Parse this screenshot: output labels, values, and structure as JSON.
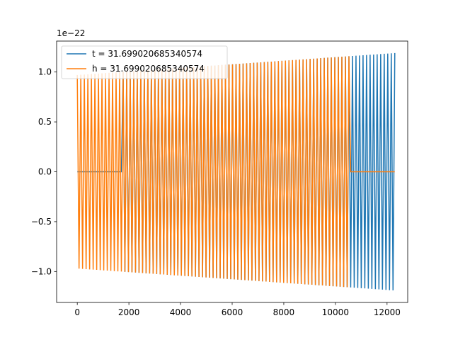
{
  "chart_data": {
    "type": "line",
    "title": "",
    "xlabel": "",
    "ylabel": "",
    "scale_label": "1e−22",
    "xlim": [
      -800,
      12800
    ],
    "ylim": [
      -1.31,
      1.31
    ],
    "x_ticks": [
      0,
      2000,
      4000,
      6000,
      8000,
      10000,
      12000
    ],
    "x_tick_labels": [
      "0",
      "2000",
      "4000",
      "6000",
      "8000",
      "10000",
      "12000"
    ],
    "y_ticks": [
      -1.0,
      -0.5,
      0.0,
      0.5,
      1.0
    ],
    "y_tick_labels": [
      "−1.0",
      "−0.5",
      "0.0",
      "0.5",
      "1.0"
    ],
    "legend_position": "top-left",
    "grid": false,
    "series": [
      {
        "name": "t = 31.699020685340574",
        "color": "#1f77b4",
        "x_range": [
          0,
          12300
        ],
        "zero_before": 1750,
        "n_cycles": 90,
        "amp_start": 0.97,
        "amp_end": 1.19
      },
      {
        "name": "h = 31.699020685340574",
        "color": "#ff7f0e",
        "x_range": [
          0,
          12300
        ],
        "zero_after": 10550,
        "n_cycles": 90,
        "amp_start": 0.97,
        "amp_end": 1.19
      }
    ]
  }
}
